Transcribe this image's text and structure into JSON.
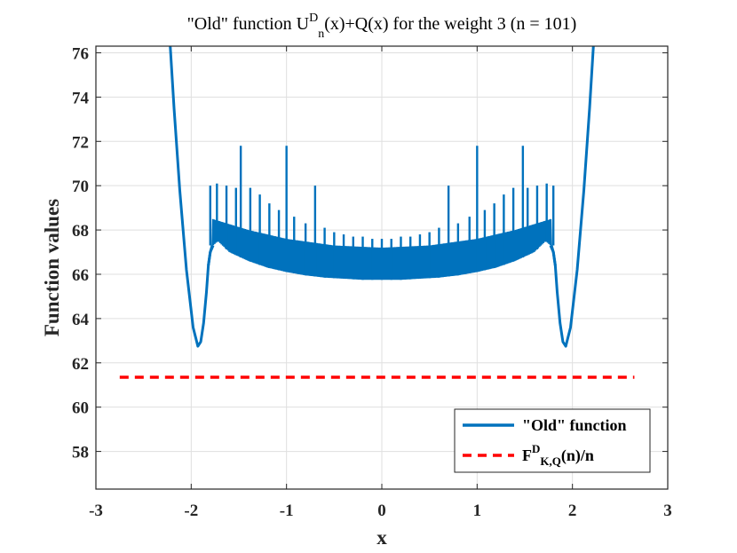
{
  "chart_data": {
    "type": "line",
    "title": {
      "prefix": "\"Old\" function U",
      "sup": "D",
      "sub": "n",
      "suffix": "(x)+Q(x) for the weight 3  (n = 101)"
    },
    "xlabel": "x",
    "ylabel": "Function values",
    "xlim": [
      -3,
      3
    ],
    "ylim": [
      56.3,
      76.3
    ],
    "xticks": [
      -3,
      -2,
      -1,
      0,
      1,
      2,
      3
    ],
    "yticks": [
      58,
      60,
      62,
      64,
      66,
      68,
      70,
      72,
      74,
      76
    ],
    "grid": true,
    "legend_position": "bottom-right",
    "series": [
      {
        "name": "\"Old\" function",
        "style": "solid",
        "color": "#0072BD",
        "x": [
          -2.22,
          -2.18,
          -2.12,
          -2.05,
          -1.98,
          -1.93,
          -1.9,
          -1.87,
          -1.84,
          -1.82,
          -1.8,
          -1.77,
          -1.72,
          -1.6,
          -1.4,
          -1.2,
          -1.0,
          -0.8,
          -0.6,
          -0.4,
          -0.2,
          0.0,
          0.2,
          0.4,
          0.6,
          0.8,
          1.0,
          1.2,
          1.4,
          1.6,
          1.72,
          1.77,
          1.8,
          1.82,
          1.84,
          1.87,
          1.9,
          1.93,
          1.98,
          2.05,
          2.12,
          2.18,
          2.22
        ],
        "values": [
          76.3,
          73.5,
          69.8,
          66.2,
          63.6,
          62.75,
          62.95,
          63.8,
          65.2,
          66.4,
          67.0,
          67.3,
          67.5,
          67.0,
          66.6,
          66.3,
          66.1,
          65.95,
          65.85,
          65.8,
          65.75,
          65.75,
          65.75,
          65.8,
          65.85,
          65.95,
          66.1,
          66.3,
          66.6,
          67.0,
          67.5,
          67.3,
          67.0,
          66.4,
          65.2,
          63.8,
          62.95,
          62.75,
          63.6,
          66.2,
          69.8,
          73.5,
          76.3
        ],
        "oscillation": {
          "x_range": [
            -1.78,
            1.78
          ],
          "upper_envelope": [
            [
              -1.78,
              68.5
            ],
            [
              -1.4,
              68.0
            ],
            [
              -1.0,
              67.6
            ],
            [
              -0.5,
              67.3
            ],
            [
              0.0,
              67.2
            ],
            [
              0.5,
              67.3
            ],
            [
              1.0,
              67.6
            ],
            [
              1.4,
              68.0
            ],
            [
              1.78,
              68.5
            ]
          ],
          "spikes": [
            [
              -1.8,
              70.0
            ],
            [
              -1.73,
              70.1
            ],
            [
              -1.63,
              70.0
            ],
            [
              -1.53,
              69.9
            ],
            [
              -1.48,
              71.8
            ],
            [
              -1.38,
              69.9
            ],
            [
              -1.28,
              69.6
            ],
            [
              -1.18,
              69.2
            ],
            [
              -1.08,
              68.9
            ],
            [
              -1.0,
              71.8
            ],
            [
              -0.92,
              68.6
            ],
            [
              -0.8,
              68.3
            ],
            [
              -0.7,
              70.0
            ],
            [
              -0.6,
              68.1
            ],
            [
              -0.5,
              67.9
            ],
            [
              -0.4,
              67.8
            ],
            [
              -0.3,
              67.7
            ],
            [
              -0.2,
              67.7
            ],
            [
              -0.1,
              67.6
            ],
            [
              0.0,
              67.6
            ],
            [
              0.1,
              67.6
            ],
            [
              0.2,
              67.7
            ],
            [
              0.3,
              67.7
            ],
            [
              0.4,
              67.8
            ],
            [
              0.5,
              67.9
            ],
            [
              0.6,
              68.1
            ],
            [
              0.7,
              70.0
            ],
            [
              0.8,
              68.3
            ],
            [
              0.92,
              68.6
            ],
            [
              1.0,
              71.8
            ],
            [
              1.08,
              68.9
            ],
            [
              1.18,
              69.2
            ],
            [
              1.28,
              69.6
            ],
            [
              1.38,
              69.9
            ],
            [
              1.48,
              71.8
            ],
            [
              1.53,
              69.9
            ],
            [
              1.63,
              70.0
            ],
            [
              1.73,
              70.1
            ],
            [
              1.8,
              70.0
            ]
          ]
        }
      },
      {
        "name": "F^D_{K,Q}(n)/n",
        "legend_label": {
          "main": "F",
          "sup": "D",
          "sub": "K,Q",
          "suffix": "(n)/n"
        },
        "style": "dashed",
        "color": "#FF0000",
        "x": [
          -2.75,
          2.65
        ],
        "values": [
          61.35,
          61.35
        ]
      }
    ]
  }
}
